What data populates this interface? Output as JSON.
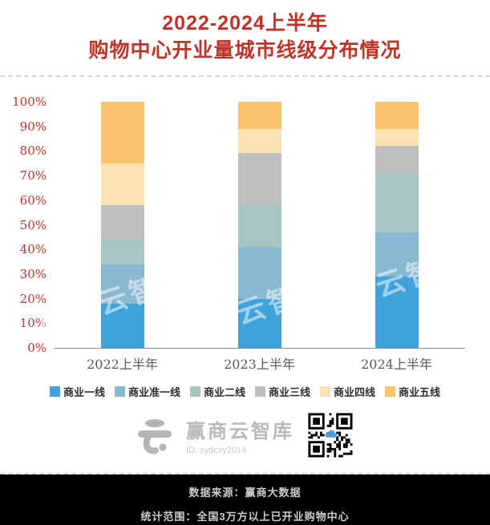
{
  "title": {
    "line1": "2022-2024上半年",
    "line2": "购物中心开业量城市线级分布情况"
  },
  "chart_data": {
    "type": "bar",
    "stacked": true,
    "percent": true,
    "title": "2022-2024上半年购物中心开业量城市线级分布情况",
    "categories": [
      "2022上半年",
      "2023上半年",
      "2024上半年"
    ],
    "series": [
      {
        "name": "商业一线",
        "color": "#3fa2db",
        "values": [
          18,
          20,
          29
        ]
      },
      {
        "name": "商业准一线",
        "color": "#89b8d3",
        "values": [
          16,
          21,
          18
        ]
      },
      {
        "name": "商业二线",
        "color": "#a7c6c3",
        "values": [
          10,
          17,
          24
        ]
      },
      {
        "name": "商业三线",
        "color": "#bfbfbf",
        "values": [
          14,
          21,
          11
        ]
      },
      {
        "name": "商业四线",
        "color": "#fce2b3",
        "values": [
          17,
          10,
          7
        ]
      },
      {
        "name": "商业五线",
        "color": "#fcc46d",
        "values": [
          25,
          11,
          11
        ]
      }
    ],
    "ylabel": "",
    "xlabel": "",
    "ylim": [
      0,
      100
    ],
    "y_tick_step": 10,
    "y_tick_suffix": "%",
    "grid": false,
    "legend_position": "bottom"
  },
  "watermark": {
    "text": "赢商云智库"
  },
  "branding": {
    "name": "赢商云智库",
    "id": "ID: sydcxy2014",
    "qr_label": "qr-code"
  },
  "footer": {
    "source": "数据来源：赢商大数据",
    "scope": "统计范围：全国3万方以上已开业购物中心"
  },
  "colors": {
    "title_red": "#bf3328",
    "axis_label_red": "#bf3328",
    "x_label_gray": "#5a5a5a",
    "footer_bg": "#000000",
    "footer_text": "#cccccc"
  }
}
